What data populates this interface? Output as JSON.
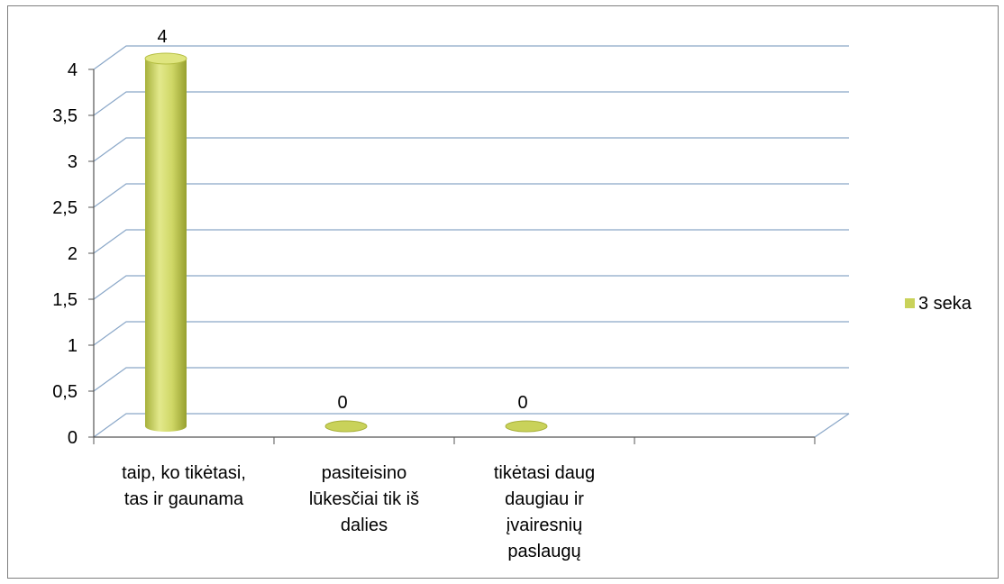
{
  "chart_data": {
    "type": "bar",
    "categories": [
      [
        "taip, ko tikėtasi,",
        "tas ir gaunama"
      ],
      [
        "pasiteisino",
        "lūkesčiai tik iš",
        "dalies"
      ],
      [
        "tikėtasi daug",
        "daugiau ir",
        "įvairesnių",
        "paslaugų"
      ]
    ],
    "series": [
      {
        "name": "3 seka",
        "values": [
          4,
          0,
          0
        ],
        "color": "#c9d25a"
      }
    ],
    "yticks": [
      "0",
      "0,5",
      "1",
      "1,5",
      "2",
      "2,5",
      "3",
      "3,5",
      "4"
    ],
    "ylim": [
      0,
      4
    ],
    "grid": true,
    "legend": "right",
    "style": "3d-cylinder"
  }
}
